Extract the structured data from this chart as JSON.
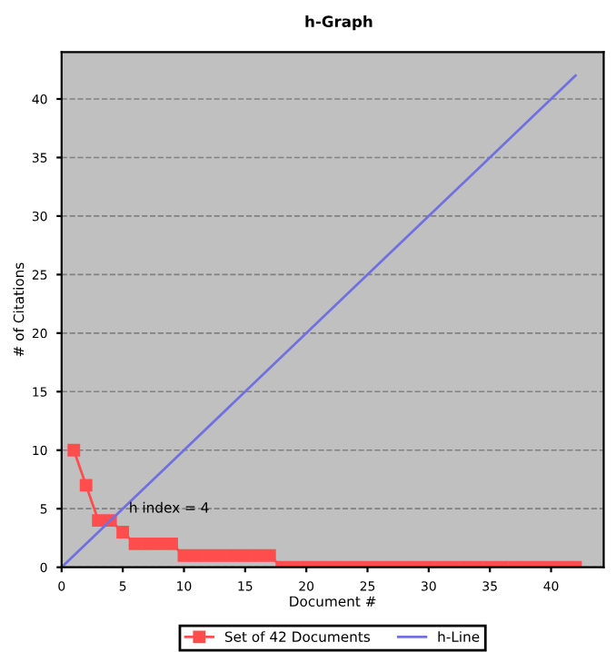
{
  "chart_data": {
    "type": "line",
    "title": "h-Graph",
    "xlabel": "Document #",
    "ylabel": "# of Citations",
    "annotations": [
      {
        "text": "h index = 4",
        "x": 5.5,
        "y": 5
      }
    ],
    "series": [
      {
        "name": "Set of 42 Documents",
        "color": "#ff4d4d",
        "marker": "square",
        "x": [
          1,
          2,
          3,
          4,
          5,
          6,
          7,
          8,
          9,
          10,
          11,
          12,
          13,
          14,
          15,
          16,
          17,
          18,
          19,
          20,
          21,
          22,
          23,
          24,
          25,
          26,
          27,
          28,
          29,
          30,
          31,
          32,
          33,
          34,
          35,
          36,
          37,
          38,
          39,
          40,
          41,
          42
        ],
        "values": [
          10,
          7,
          4,
          4,
          3,
          2,
          2,
          2,
          2,
          1,
          1,
          1,
          1,
          1,
          1,
          1,
          1,
          0,
          0,
          0,
          0,
          0,
          0,
          0,
          0,
          0,
          0,
          0,
          0,
          0,
          0,
          0,
          0,
          0,
          0,
          0,
          0,
          0,
          0,
          0,
          0,
          0
        ]
      },
      {
        "name": "h-Line",
        "color": "#7070e0",
        "marker": "none",
        "x": [
          0,
          42
        ],
        "values": [
          0,
          42
        ]
      }
    ],
    "xlim": [
      0,
      44.3
    ],
    "ylim": [
      0,
      44
    ],
    "xticks": [
      0,
      5,
      10,
      15,
      20,
      25,
      30,
      35,
      40
    ],
    "yticks": [
      0,
      5,
      10,
      15,
      20,
      25,
      30,
      35,
      40
    ],
    "grid": "y",
    "legend": "bottom"
  }
}
